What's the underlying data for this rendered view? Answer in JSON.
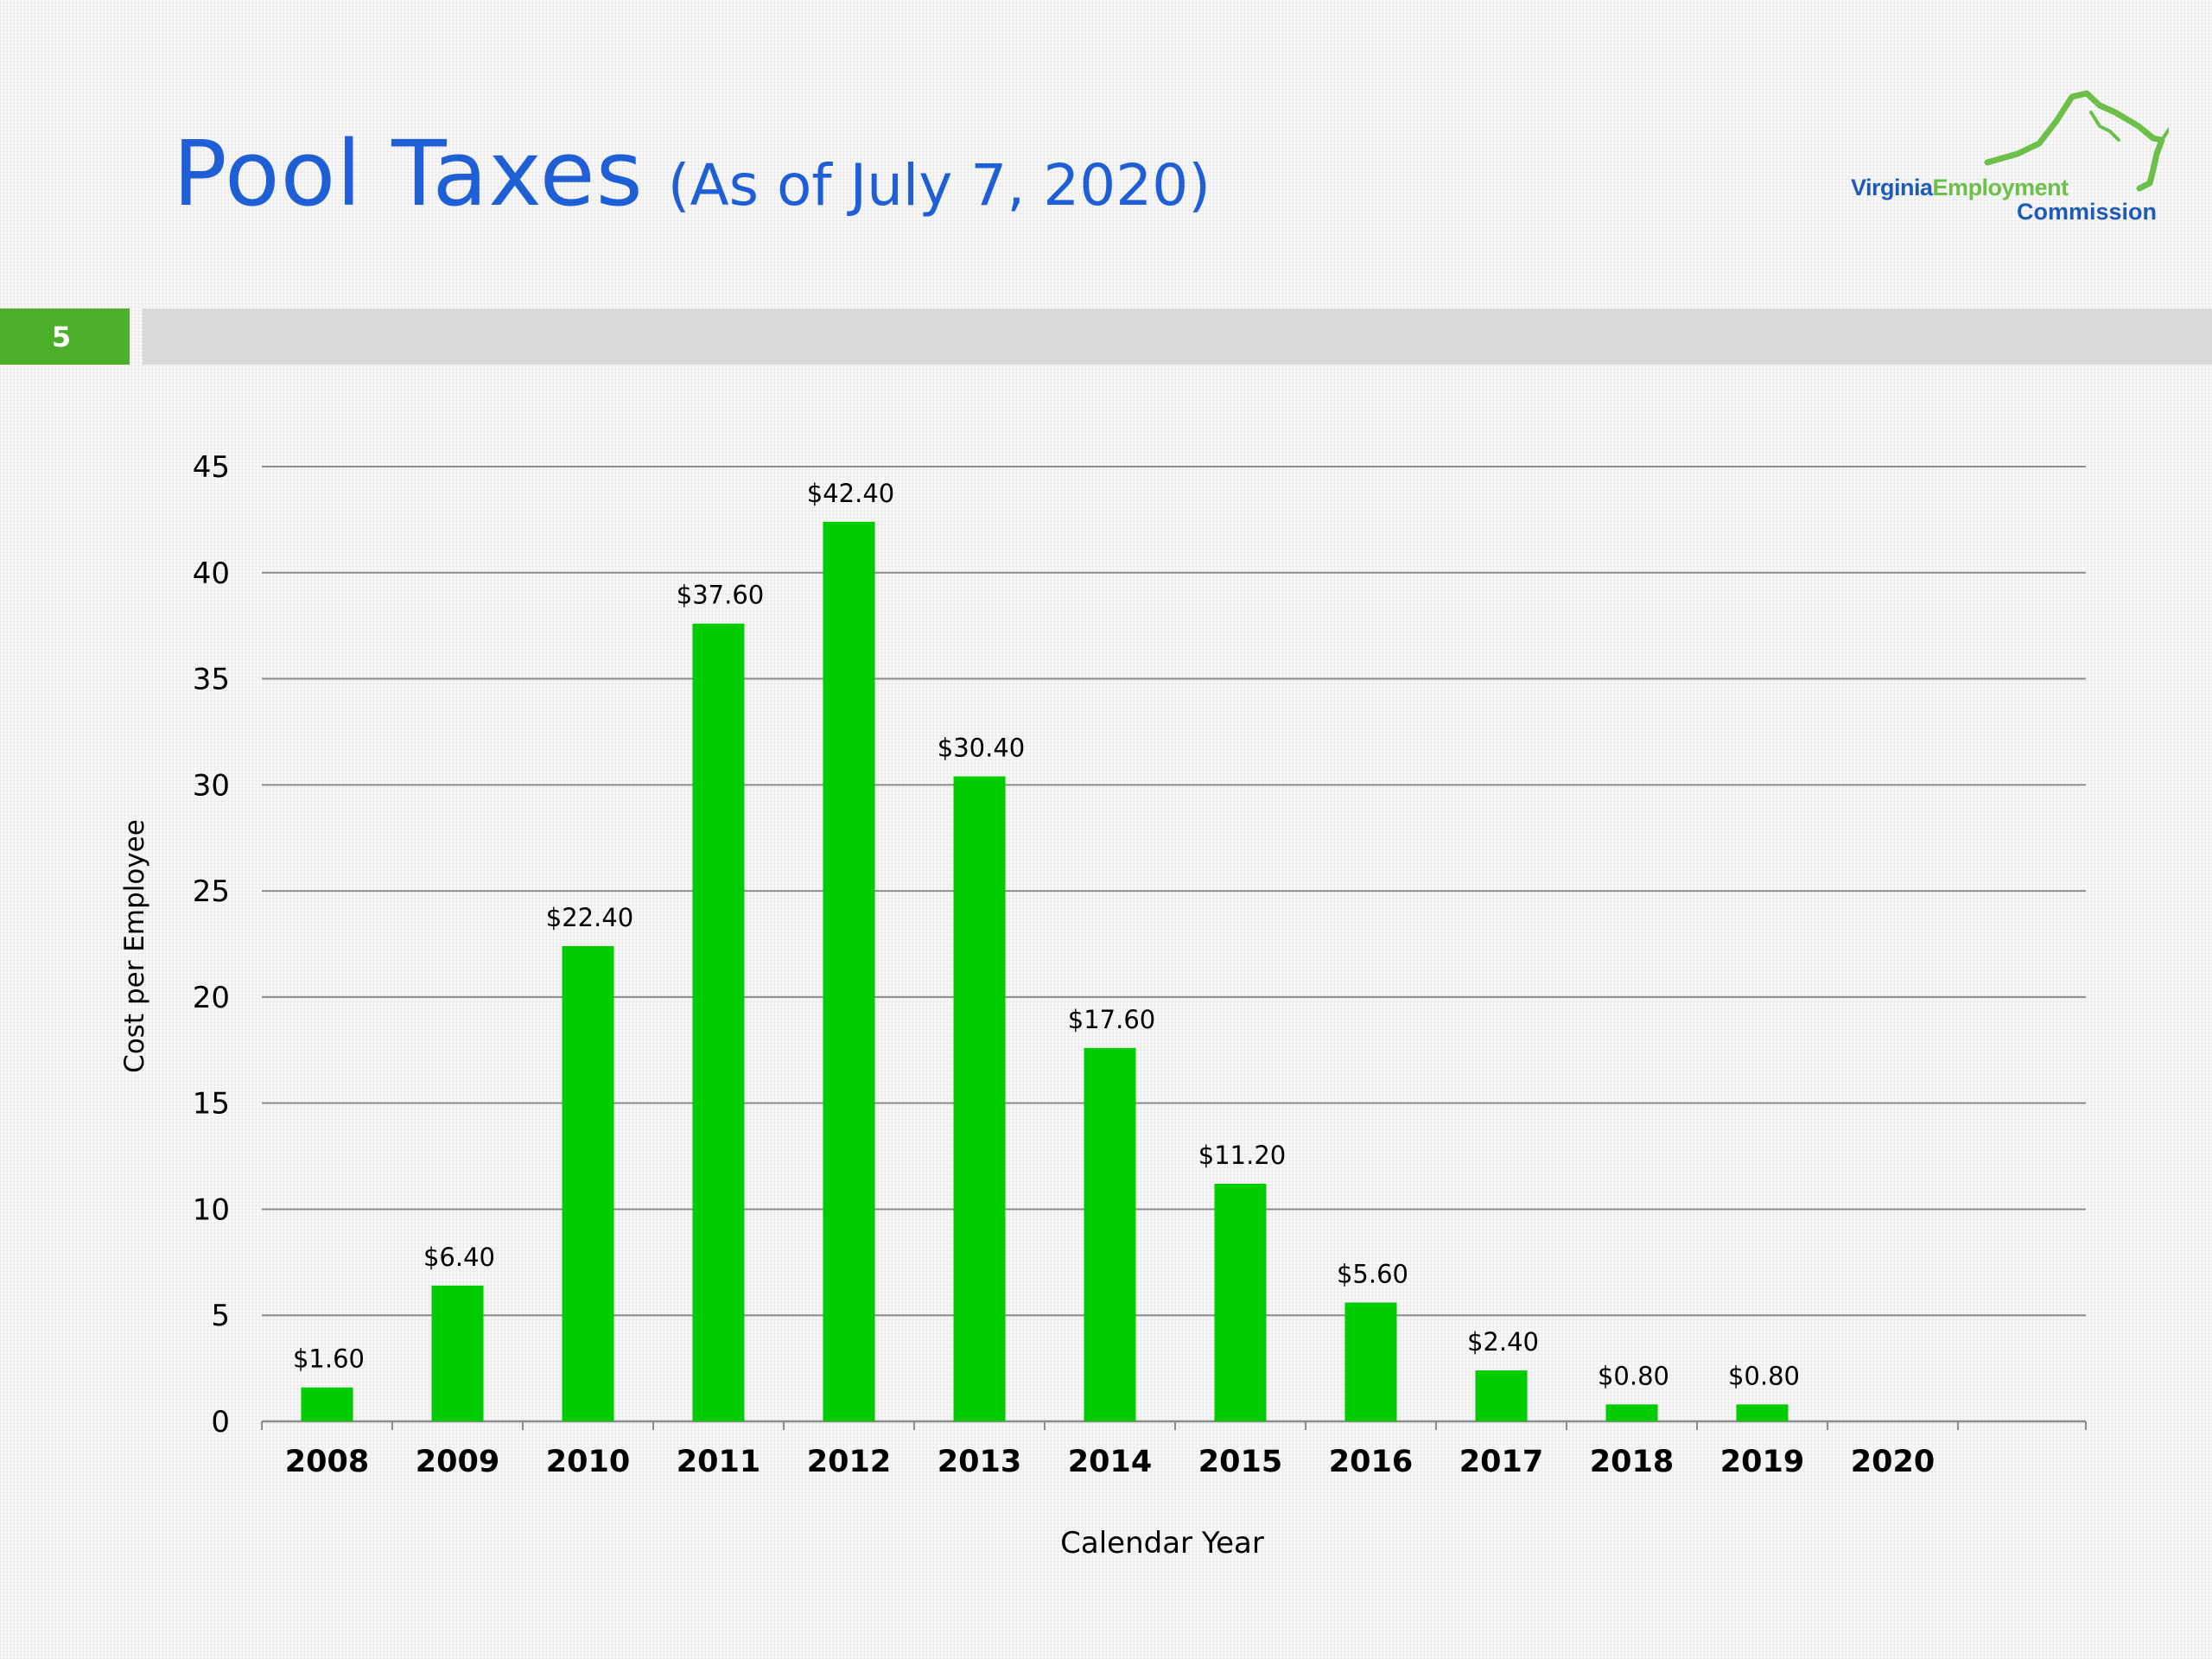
{
  "slide": {
    "title": "Pool Taxes",
    "subtitle": "(As of July 7, 2020)",
    "number": "5"
  },
  "logo": {
    "word1": "Virginia",
    "word2": "Employment",
    "word3": "Commission"
  },
  "colors": {
    "title": "#1f5fd6",
    "bar": "#00cc00",
    "accent_green": "#4caf2a",
    "logo_blue": "#1e5bb8",
    "logo_green": "#6cc04a",
    "divider": "#d9d9d9",
    "grid": "#8c8c8c"
  },
  "chart_data": {
    "type": "bar",
    "categories": [
      "2008",
      "2009",
      "2010",
      "2011",
      "2012",
      "2013",
      "2014",
      "2015",
      "2016",
      "2017",
      "2018",
      "2019",
      "2020"
    ],
    "values": [
      1.6,
      6.4,
      22.4,
      37.6,
      42.4,
      30.4,
      17.6,
      11.2,
      5.6,
      2.4,
      0.8,
      0.8,
      null
    ],
    "data_labels": [
      "$1.60",
      "$6.40",
      "$22.40",
      "$37.60",
      "$42.40",
      "$30.40",
      "$17.60",
      "$11.20",
      "$5.60",
      "$2.40",
      "$0.80",
      "$0.80",
      ""
    ],
    "xlabel": "Calendar Year",
    "ylabel": "Cost per Employee",
    "ylim": [
      0,
      45
    ],
    "yticks": [
      0,
      5,
      10,
      15,
      20,
      25,
      30,
      35,
      40,
      45
    ],
    "grid": true,
    "legend": "none"
  }
}
